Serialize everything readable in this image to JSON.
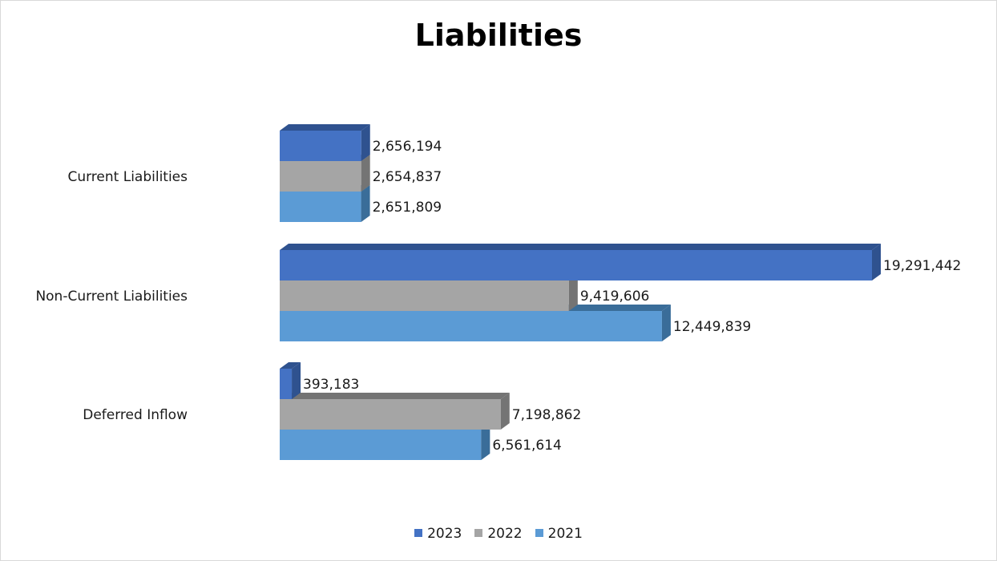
{
  "chart_data": {
    "type": "bar",
    "orientation": "horizontal",
    "style": "3d",
    "title": "Liabilities",
    "categories": [
      "Current Liabilities",
      "Non-Current Liabilities",
      "Deferred Inflow"
    ],
    "series": [
      {
        "name": "2023",
        "color": "#4472c4",
        "side_color": "#2f528f",
        "values": [
          2656194,
          19291442,
          393183
        ],
        "labels": [
          "2,656,194",
          "19,291,442",
          "393,183"
        ]
      },
      {
        "name": "2022",
        "color": "#a5a5a5",
        "side_color": "#747474",
        "values": [
          2654837,
          9419606,
          7198862
        ],
        "labels": [
          "2,654,837",
          "9,419,606",
          "7,198,862"
        ]
      },
      {
        "name": "2021",
        "color": "#5b9bd5",
        "side_color": "#3a6d99",
        "values": [
          2651809,
          12449839,
          6561614
        ],
        "labels": [
          "2,651,809",
          "12,449,839",
          "6,561,614"
        ]
      }
    ],
    "xlim": [
      0,
      19291442
    ],
    "legend_position": "bottom",
    "grid": false
  }
}
